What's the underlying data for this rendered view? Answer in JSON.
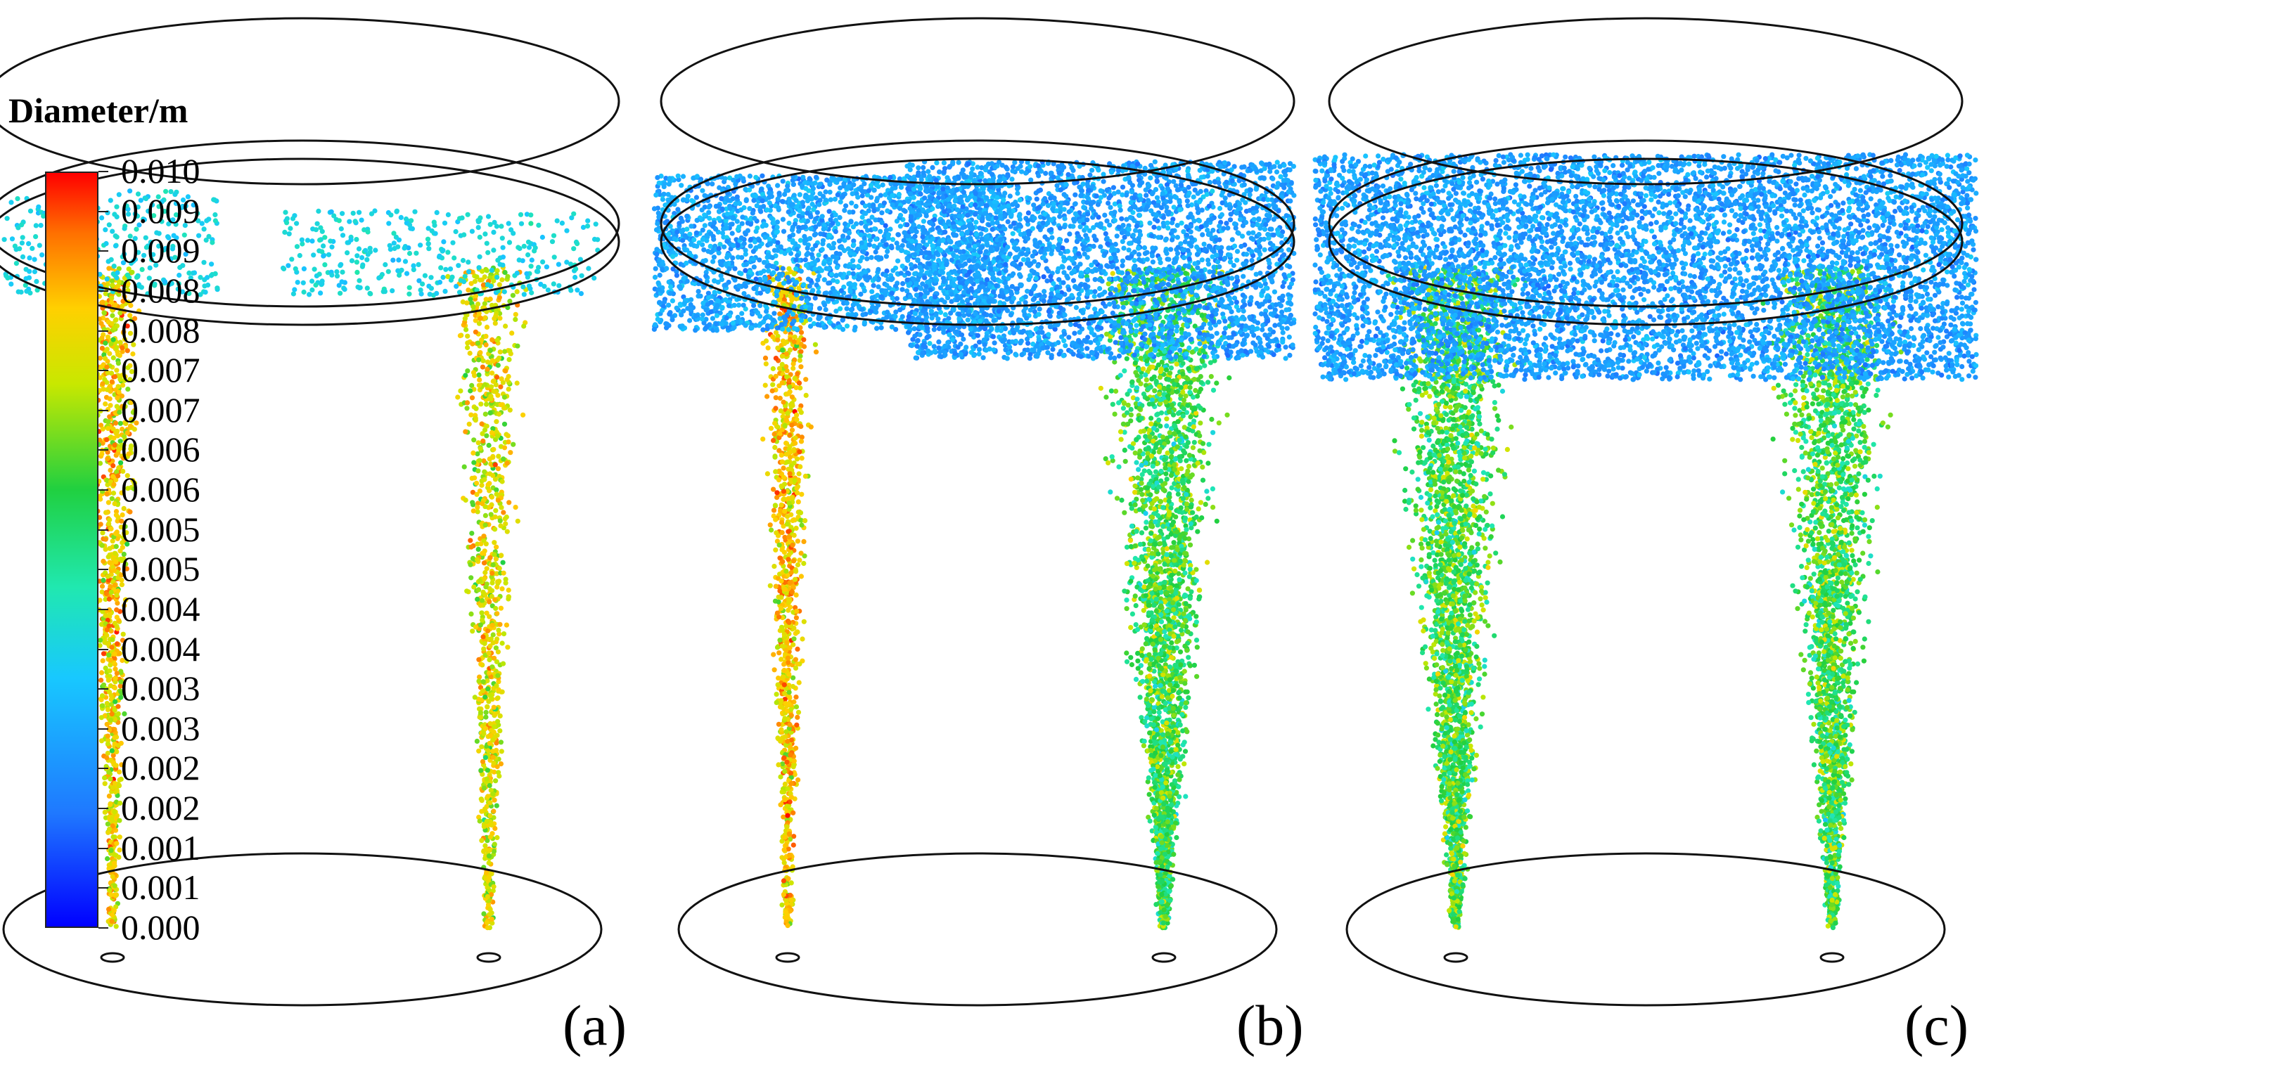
{
  "legend": {
    "title": "Diameter/m",
    "ticks": [
      "0.010",
      "0.009",
      "0.009",
      "0.008",
      "0.008",
      "0.007",
      "0.007",
      "0.006",
      "0.006",
      "0.005",
      "0.005",
      "0.004",
      "0.004",
      "0.003",
      "0.003",
      "0.002",
      "0.002",
      "0.001",
      "0.001",
      "0.000"
    ],
    "gradient_colors": [
      "#0000ff",
      "#1f78ff",
      "#18c8ff",
      "#20e8b0",
      "#20d040",
      "#c8e800",
      "#ffd000",
      "#ff7000",
      "#ff0000"
    ]
  },
  "panels": [
    {
      "label": "(a)",
      "fill_level": "low"
    },
    {
      "label": "(b)",
      "fill_level": "medium"
    },
    {
      "label": "(c)",
      "fill_level": "high"
    }
  ]
}
